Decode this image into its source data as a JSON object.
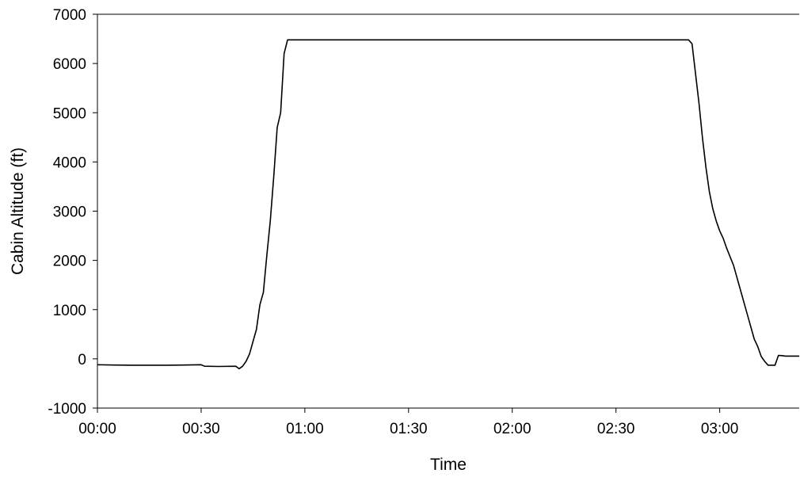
{
  "chart_data": {
    "type": "line",
    "title": "",
    "xlabel": "Time",
    "ylabel": "Cabin Altitude (ft)",
    "x_ticks": [
      "00:00",
      "00:30",
      "01:00",
      "01:30",
      "02:00",
      "02:30",
      "03:00"
    ],
    "y_ticks": [
      "-1000",
      "0",
      "1000",
      "2000",
      "3000",
      "4000",
      "5000",
      "6000",
      "7000"
    ],
    "xlim": [
      "00:00",
      "03:23"
    ],
    "ylim": [
      -1000,
      7000
    ],
    "grid": false,
    "line_color": "#000000",
    "series": [
      {
        "x": [
          "00:00",
          "00:05",
          "00:10",
          "00:15",
          "00:20",
          "00:25",
          "00:30",
          "00:31",
          "00:35",
          "00:40",
          "00:41",
          "00:42",
          "00:43",
          "00:44",
          "00:45",
          "00:46",
          "00:47",
          "00:48",
          "00:49",
          "00:50",
          "00:51",
          "00:52",
          "00:53",
          "00:54",
          "00:55",
          "00:56",
          "00:57",
          "00:58",
          "00:59",
          "01:00",
          "01:30",
          "02:00",
          "02:30",
          "02:51",
          "02:52",
          "02:53",
          "02:54",
          "02:55",
          "02:56",
          "02:57",
          "02:58",
          "02:59",
          "03:00",
          "03:01",
          "03:02",
          "03:04",
          "03:06",
          "03:08",
          "03:10",
          "03:11",
          "03:12",
          "03:13",
          "03:14",
          "03:15",
          "03:16",
          "03:17",
          "03:18",
          "03:19",
          "03:21",
          "03:23"
        ],
        "y": [
          -120,
          -125,
          -130,
          -130,
          -130,
          -125,
          -120,
          -150,
          -155,
          -150,
          -200,
          -150,
          -50,
          100,
          350,
          600,
          1100,
          1350,
          2100,
          2800,
          3700,
          4700,
          5000,
          6200,
          6480,
          6480,
          6480,
          6480,
          6480,
          6480,
          6480,
          6480,
          6480,
          6480,
          6400,
          5800,
          5200,
          4500,
          3900,
          3400,
          3050,
          2800,
          2600,
          2450,
          2250,
          1900,
          1400,
          900,
          400,
          250,
          50,
          -50,
          -130,
          -130,
          -130,
          70,
          65,
          55,
          55,
          55
        ]
      }
    ]
  }
}
